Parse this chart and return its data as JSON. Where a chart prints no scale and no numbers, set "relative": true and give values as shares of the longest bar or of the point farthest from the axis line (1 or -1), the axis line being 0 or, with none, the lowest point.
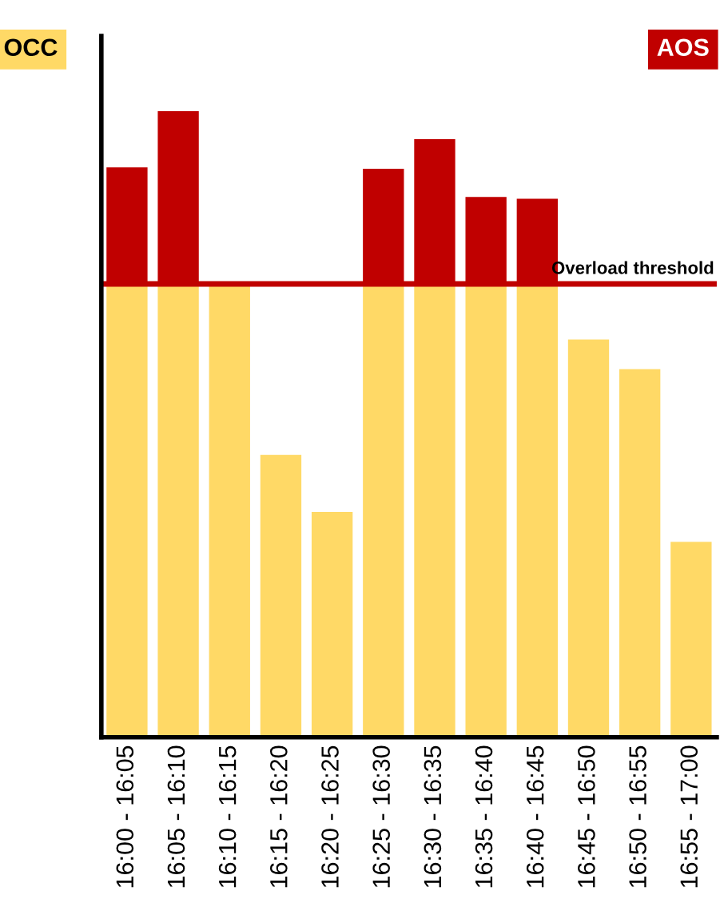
{
  "chart_data": {
    "type": "bar",
    "stacked": true,
    "relative": true,
    "categories": [
      "16:00 - 16:05",
      "16:05 - 16:10",
      "16:10 - 16:15",
      "16:15 - 16:20",
      "16:20 - 16:25",
      "16:25 - 16:30",
      "16:30 - 16:35",
      "16:35 - 16:40",
      "16:40 - 16:45",
      "16:45 - 16:50",
      "16:50 - 16:55",
      "16:55 - 17:00"
    ],
    "series": [
      {
        "name": "OCC",
        "color": "#ffd966",
        "values": [
          0.724,
          0.724,
          0.724,
          0.451,
          0.36,
          0.724,
          0.724,
          0.724,
          0.724,
          0.635,
          0.588,
          0.312
        ]
      },
      {
        "name": "AOS",
        "color": "#c00000",
        "values": [
          0.186,
          0.276,
          null,
          null,
          null,
          0.184,
          0.231,
          0.139,
          0.136,
          null,
          null,
          null
        ]
      }
    ],
    "ref_lines": [
      {
        "axis": "y",
        "value": 0.724,
        "label": "Overload threshold",
        "color": "#c00000"
      }
    ],
    "legend": "top",
    "grid": false
  }
}
